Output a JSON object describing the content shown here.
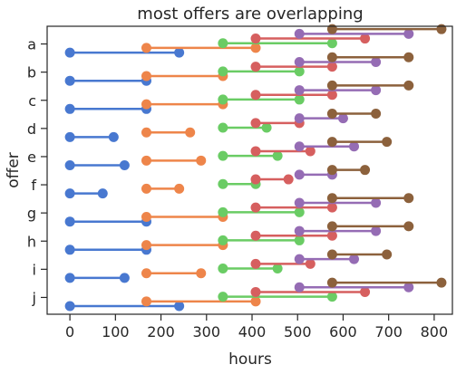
{
  "chart_data": {
    "type": "dumbbell",
    "title": "most offers are overlapping",
    "xlabel": "hours",
    "ylabel": "offer",
    "xlim": [
      -50,
      840
    ],
    "xticks": [
      0,
      100,
      200,
      300,
      400,
      500,
      600,
      700,
      800
    ],
    "categories": [
      "a",
      "b",
      "c",
      "d",
      "e",
      "f",
      "g",
      "h",
      "i",
      "j"
    ],
    "grid": false,
    "legend": "none",
    "series": [
      {
        "color": "#4878d0",
        "intervals": [
          [
            0,
            240
          ],
          [
            0,
            168
          ],
          [
            0,
            168
          ],
          [
            0,
            96
          ],
          [
            0,
            120
          ],
          [
            0,
            72
          ],
          [
            0,
            168
          ],
          [
            0,
            168
          ],
          [
            0,
            120
          ],
          [
            0,
            240
          ]
        ]
      },
      {
        "color": "#ee854a",
        "intervals": [
          [
            168,
            408
          ],
          [
            168,
            336
          ],
          [
            168,
            336
          ],
          [
            168,
            264
          ],
          [
            168,
            288
          ],
          [
            168,
            240
          ],
          [
            168,
            336
          ],
          [
            168,
            336
          ],
          [
            168,
            288
          ],
          [
            168,
            408
          ]
        ]
      },
      {
        "color": "#6acc64",
        "intervals": [
          [
            336,
            576
          ],
          [
            336,
            504
          ],
          [
            336,
            504
          ],
          [
            336,
            432
          ],
          [
            336,
            456
          ],
          [
            336,
            408
          ],
          [
            336,
            504
          ],
          [
            336,
            504
          ],
          [
            336,
            456
          ],
          [
            336,
            576
          ]
        ]
      },
      {
        "color": "#d65f5f",
        "intervals": [
          [
            408,
            648
          ],
          [
            408,
            576
          ],
          [
            408,
            576
          ],
          [
            408,
            504
          ],
          [
            408,
            528
          ],
          [
            408,
            480
          ],
          [
            408,
            576
          ],
          [
            408,
            576
          ],
          [
            408,
            528
          ],
          [
            408,
            648
          ]
        ]
      },
      {
        "color": "#956cb4",
        "intervals": [
          [
            504,
            744
          ],
          [
            504,
            672
          ],
          [
            504,
            672
          ],
          [
            504,
            600
          ],
          [
            504,
            624
          ],
          [
            504,
            576
          ],
          [
            504,
            672
          ],
          [
            504,
            672
          ],
          [
            504,
            624
          ],
          [
            504,
            744
          ]
        ]
      },
      {
        "color": "#8c613c",
        "intervals": [
          [
            576,
            816
          ],
          [
            576,
            744
          ],
          [
            576,
            744
          ],
          [
            576,
            672
          ],
          [
            576,
            696
          ],
          [
            576,
            648
          ],
          [
            576,
            744
          ],
          [
            576,
            744
          ],
          [
            576,
            696
          ],
          [
            576,
            816
          ]
        ]
      }
    ]
  }
}
